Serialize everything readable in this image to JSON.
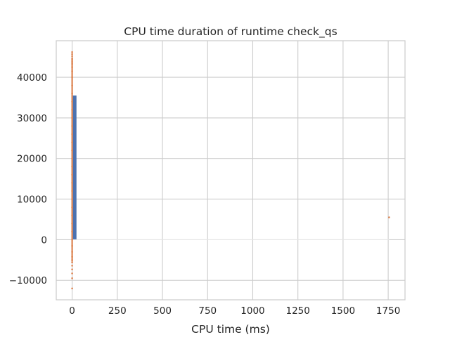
{
  "chart_data": {
    "type": "bar",
    "title": "CPU time duration of runtime check_qs",
    "xlabel": "CPU time (ms)",
    "ylabel": "",
    "xlim": [
      -88,
      1843
    ],
    "ylim": [
      -14800,
      49000
    ],
    "xticks": [
      0,
      250,
      500,
      750,
      1000,
      1250,
      1500,
      1750
    ],
    "yticks": [
      -10000,
      0,
      10000,
      20000,
      30000,
      40000
    ],
    "xtick_labels": [
      "0",
      "250",
      "500",
      "750",
      "1000",
      "1250",
      "1500",
      "1750"
    ],
    "ytick_labels": [
      "−10000",
      "0",
      "10000",
      "20000",
      "30000",
      "40000"
    ],
    "grid": true,
    "histogram": {
      "color": "#4c72b0",
      "bins": [
        {
          "x0": 4,
          "x1": 24,
          "count": 35500
        }
      ]
    },
    "scatter": {
      "color": "#dd8452",
      "points": [
        {
          "x": 0,
          "y": 46200
        },
        {
          "x": 0,
          "y": 45700
        },
        {
          "x": 0,
          "y": 45200
        },
        {
          "x": 0,
          "y": 44700
        },
        {
          "x": 0,
          "y": 44300
        },
        {
          "x": 0,
          "y": 43800
        },
        {
          "x": 0,
          "y": 43300
        },
        {
          "x": 0,
          "y": 42500
        },
        {
          "x": 0,
          "y": 41500
        },
        {
          "x": 0,
          "y": 40000
        },
        {
          "x": 0,
          "y": 38000
        },
        {
          "x": 0,
          "y": 36000
        },
        {
          "x": 0,
          "y": 34000
        },
        {
          "x": 0,
          "y": 32000
        },
        {
          "x": 0,
          "y": 30000
        },
        {
          "x": 0,
          "y": 28000
        },
        {
          "x": 0,
          "y": 26000
        },
        {
          "x": 0,
          "y": 24000
        },
        {
          "x": 0,
          "y": 22000
        },
        {
          "x": 0,
          "y": 20000
        },
        {
          "x": 0,
          "y": 18000
        },
        {
          "x": 0,
          "y": 16000
        },
        {
          "x": 0,
          "y": 14000
        },
        {
          "x": 0,
          "y": 12000
        },
        {
          "x": 0,
          "y": 10000
        },
        {
          "x": 0,
          "y": 8000
        },
        {
          "x": 0,
          "y": 6000
        },
        {
          "x": 0,
          "y": 4000
        },
        {
          "x": 0,
          "y": 2000
        },
        {
          "x": 0,
          "y": 0
        },
        {
          "x": 0,
          "y": -1500
        },
        {
          "x": 0,
          "y": -3000
        },
        {
          "x": 0,
          "y": -4200
        },
        {
          "x": 0,
          "y": -5000
        },
        {
          "x": 0,
          "y": -5600
        },
        {
          "x": 0,
          "y": -6400
        },
        {
          "x": 0,
          "y": -7300
        },
        {
          "x": 0,
          "y": -8300
        },
        {
          "x": 0,
          "y": -9500
        },
        {
          "x": 0,
          "y": -12000
        },
        {
          "x": 1755,
          "y": 5500
        }
      ]
    },
    "baseline": {
      "color": "#eaeaea",
      "y": 0,
      "x0": 0,
      "x1": 1755
    }
  }
}
